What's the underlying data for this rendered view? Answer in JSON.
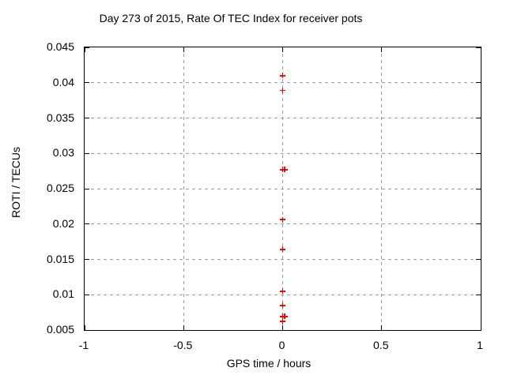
{
  "colors": {
    "marker": "#ff0000",
    "grid": "#9e9e9e",
    "axis": "#000000",
    "background": "#ffffff"
  },
  "chart_data": {
    "type": "scatter",
    "title": "Day 273 of 2015, Rate Of TEC Index for receiver pots",
    "xlabel": "GPS time / hours",
    "ylabel": "ROTI / TECUs",
    "xlim": [
      -1,
      1
    ],
    "ylim": [
      0.005,
      0.045
    ],
    "xticks": [
      -1,
      -0.5,
      0,
      0.5,
      1
    ],
    "yticks": [
      0.005,
      0.01,
      0.015,
      0.02,
      0.025,
      0.03,
      0.035,
      0.04,
      0.045
    ],
    "grid": true,
    "legend_position": "none",
    "marker_style": "plus",
    "series": [
      {
        "name": "ROTI",
        "points": [
          {
            "x": 0,
            "y": 0.041
          },
          {
            "x": 0,
            "y": 0.0389
          },
          {
            "x": 0,
            "y": 0.0277
          },
          {
            "x": 0.01,
            "y": 0.0277
          },
          {
            "x": 0,
            "y": 0.0206
          },
          {
            "x": 0,
            "y": 0.0164
          },
          {
            "x": 0,
            "y": 0.0105
          },
          {
            "x": 0,
            "y": 0.0085
          },
          {
            "x": 0,
            "y": 0.0069
          },
          {
            "x": 0.01,
            "y": 0.0069
          },
          {
            "x": 0,
            "y": 0.0062
          }
        ]
      }
    ]
  }
}
